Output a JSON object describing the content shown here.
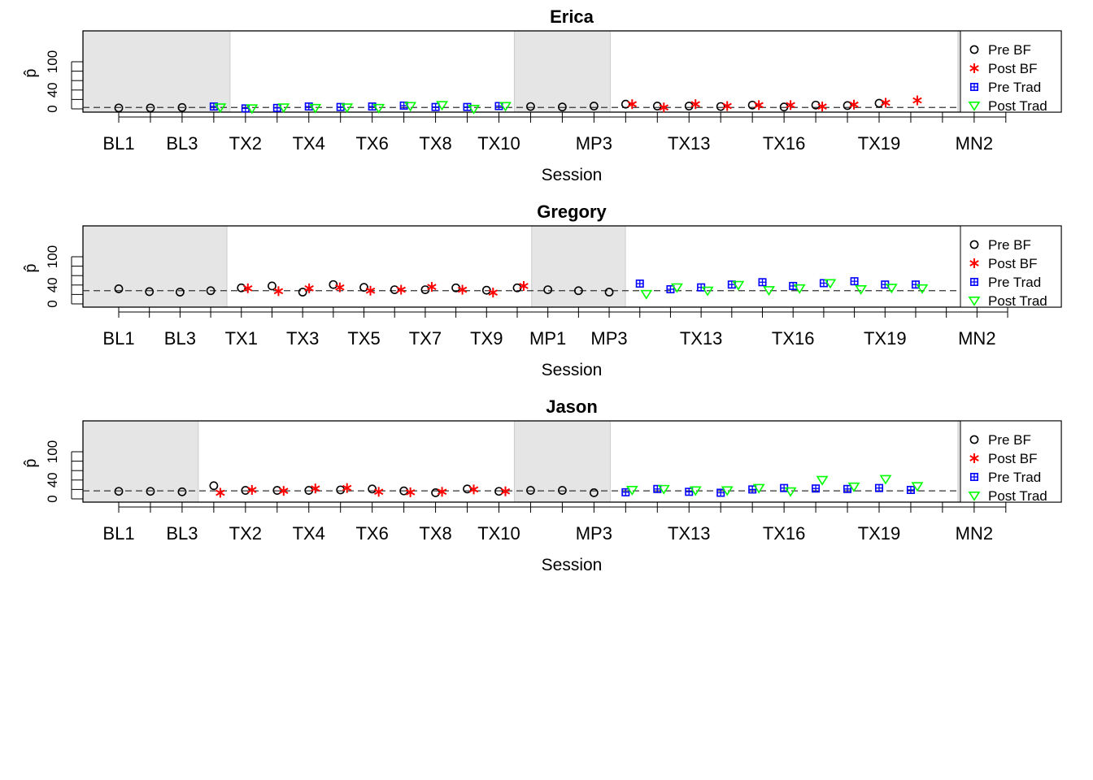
{
  "chart_data": [
    {
      "type": "scatter",
      "title": "Erica",
      "xlabel": "Session",
      "ylabel": "p̂",
      "ylim": [
        0,
        100
      ],
      "y_ticks": [
        "0",
        "40",
        "100"
      ],
      "x_tick_labels": [
        "BL1",
        "",
        "BL3",
        "",
        "TX2",
        "",
        "TX4",
        "",
        "TX6",
        "",
        "TX8",
        "",
        "TX10",
        "",
        "",
        "MP3",
        "",
        "",
        "TX13",
        "",
        "",
        "TX16",
        "",
        "",
        "TX19",
        "",
        "",
        "MN2",
        ""
      ],
      "shaded_sessions": [
        [
          1,
          4
        ],
        [
          14,
          16
        ],
        [
          28,
          29
        ]
      ],
      "reference_line": 3,
      "grid": false,
      "legend_position": "right",
      "series": [
        {
          "name": "Pre BF",
          "marker": "circle",
          "color": "#000000",
          "x": [
            1,
            2,
            3,
            14,
            15,
            16,
            17,
            18,
            19,
            20,
            21,
            22,
            23,
            24,
            25,
            28
          ],
          "y": [
            2,
            2,
            3,
            5,
            4,
            6,
            10,
            6,
            6,
            5,
            8,
            4,
            8,
            7,
            12,
            22
          ]
        },
        {
          "name": "Post BF",
          "marker": "asterisk",
          "color": "#ff0000",
          "x": [
            17,
            18,
            19,
            20,
            21,
            22,
            23,
            24,
            25,
            26
          ],
          "y": [
            10,
            3,
            10,
            6,
            8,
            8,
            5,
            9,
            13,
            18
          ]
        },
        {
          "name": "Pre Trad",
          "marker": "boxplus",
          "color": "#0000ff",
          "x": [
            4,
            5,
            6,
            7,
            8,
            9,
            10,
            11,
            12,
            13
          ],
          "y": [
            5,
            1,
            2,
            5,
            4,
            5,
            7,
            4,
            4,
            6
          ]
        },
        {
          "name": "Post Trad",
          "marker": "triangle-down",
          "color": "#00ff00",
          "x": [
            4,
            5,
            6,
            7,
            8,
            9,
            10,
            11,
            12,
            13
          ],
          "y": [
            3,
            1,
            3,
            2,
            3,
            2,
            6,
            8,
            0,
            6
          ]
        }
      ]
    },
    {
      "type": "scatter",
      "title": "Gregory",
      "xlabel": "Session",
      "ylabel": "p̂",
      "ylim": [
        0,
        100
      ],
      "y_ticks": [
        "0",
        "40",
        "100"
      ],
      "x_tick_labels": [
        "BL1",
        "",
        "BL3",
        "",
        "TX1",
        "",
        "TX3",
        "",
        "TX5",
        "",
        "TX7",
        "",
        "TX9",
        "",
        "MP1",
        "",
        "MP3",
        "",
        "",
        "TX13",
        "",
        "",
        "TX16",
        "",
        "",
        "TX19",
        "",
        "",
        "MN2",
        ""
      ],
      "shaded_sessions": [
        [
          1,
          4
        ],
        [
          15,
          17
        ],
        [
          29,
          30
        ]
      ],
      "reference_line": 28,
      "grid": false,
      "legend_position": "right",
      "series": [
        {
          "name": "Pre BF",
          "marker": "circle",
          "color": "#000000",
          "x": [
            1,
            2,
            3,
            4,
            5,
            6,
            7,
            8,
            9,
            10,
            11,
            12,
            13,
            14,
            15,
            16,
            17
          ],
          "y": [
            32,
            26,
            25,
            28,
            34,
            38,
            25,
            41,
            35,
            30,
            30,
            34,
            29,
            34,
            30,
            28,
            25
          ]
        },
        {
          "name": "Post BF",
          "marker": "asterisk",
          "color": "#ff0000",
          "x": [
            5,
            6,
            7,
            8,
            9,
            10,
            11,
            12,
            13,
            14
          ],
          "y": [
            33,
            27,
            33,
            35,
            28,
            30,
            36,
            30,
            24,
            38
          ]
        },
        {
          "name": "Pre Trad",
          "marker": "boxplus",
          "color": "#0000ff",
          "x": [
            18,
            19,
            20,
            21,
            22,
            23,
            24,
            25,
            26,
            27
          ],
          "y": [
            43,
            31,
            35,
            41,
            46,
            38,
            44,
            48,
            41,
            41
          ]
        },
        {
          "name": "Post Trad",
          "marker": "triangle-down",
          "color": "#00ff00",
          "x": [
            18,
            19,
            20,
            21,
            22,
            23,
            24,
            25,
            26,
            27
          ],
          "y": [
            21,
            35,
            28,
            40,
            29,
            33,
            44,
            31,
            34,
            33
          ]
        }
      ]
    },
    {
      "type": "scatter",
      "title": "Jason",
      "xlabel": "Session",
      "ylabel": "p̂",
      "ylim": [
        0,
        100
      ],
      "y_ticks": [
        "0",
        "40",
        "100"
      ],
      "x_tick_labels": [
        "BL1",
        "",
        "BL3",
        "",
        "TX2",
        "",
        "TX4",
        "",
        "TX6",
        "",
        "TX8",
        "",
        "TX10",
        "",
        "",
        "MP3",
        "",
        "",
        "TX13",
        "",
        "",
        "TX16",
        "",
        "",
        "TX19",
        "",
        "",
        "MN2",
        ""
      ],
      "shaded_sessions": [
        [
          1,
          3
        ],
        [
          14,
          16
        ],
        [
          28,
          29
        ]
      ],
      "reference_line": 17,
      "grid": false,
      "legend_position": "right",
      "series": [
        {
          "name": "Pre BF",
          "marker": "circle",
          "color": "#000000",
          "x": [
            1,
            2,
            3,
            4,
            5,
            6,
            7,
            8,
            9,
            10,
            11,
            12,
            13,
            14,
            15,
            16,
            28
          ],
          "y": [
            16,
            16,
            15,
            28,
            18,
            18,
            18,
            19,
            21,
            17,
            13,
            21,
            16,
            18,
            18,
            13,
            19
          ]
        },
        {
          "name": "Post BF",
          "marker": "asterisk",
          "color": "#ff0000",
          "x": [
            4,
            5,
            6,
            7,
            8,
            9,
            10,
            11,
            12,
            13
          ],
          "y": [
            13,
            19,
            17,
            22,
            23,
            15,
            14,
            15,
            20,
            16
          ]
        },
        {
          "name": "Pre Trad",
          "marker": "boxplus",
          "color": "#0000ff",
          "x": [
            17,
            18,
            19,
            20,
            21,
            22,
            23,
            24,
            25,
            26
          ],
          "y": [
            14,
            21,
            15,
            13,
            20,
            23,
            22,
            21,
            23,
            19
          ]
        },
        {
          "name": "Post Trad",
          "marker": "triangle-down",
          "color": "#00ff00",
          "x": [
            17,
            18,
            19,
            20,
            21,
            22,
            23,
            24,
            25,
            26
          ],
          "y": [
            19,
            21,
            18,
            18,
            23,
            16,
            40,
            26,
            42,
            27
          ]
        }
      ]
    }
  ]
}
